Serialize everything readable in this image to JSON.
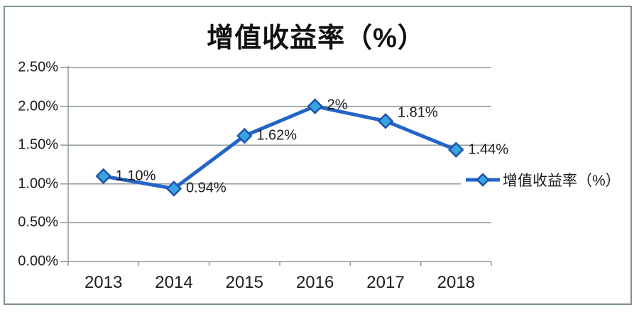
{
  "chart_data": {
    "type": "line",
    "title": "增值收益率（%）",
    "categories": [
      "2013",
      "2014",
      "2015",
      "2016",
      "2017",
      "2018"
    ],
    "series": [
      {
        "name": "增值收益率（%）",
        "values": [
          1.1,
          0.94,
          1.62,
          2.0,
          1.81,
          1.44
        ]
      }
    ],
    "point_labels": [
      "1.10%",
      "0.94%",
      "1.62%",
      "2%",
      "1.81%",
      "1.44%"
    ],
    "y_tick_labels": [
      "0.00%",
      "0.50%",
      "1.00%",
      "1.50%",
      "2.00%",
      "2.50%"
    ],
    "ylim": [
      0,
      2.5
    ],
    "y_tick_step": 0.5,
    "xlabel": "",
    "ylabel": "",
    "grid": true,
    "legend": {
      "label": "增值收益率（%）",
      "position": "right-middle"
    },
    "point_label_dy": [
      0,
      0,
      0,
      -2,
      -11,
      0
    ],
    "colors": {
      "line": "#2364c7",
      "marker_fill": "#38a3e0",
      "marker_stroke": "#1e52a9",
      "grid": "#8f9a9a",
      "axis": "#8f9a9a",
      "border": "#7e9192",
      "text": "#1c1c1c"
    }
  }
}
